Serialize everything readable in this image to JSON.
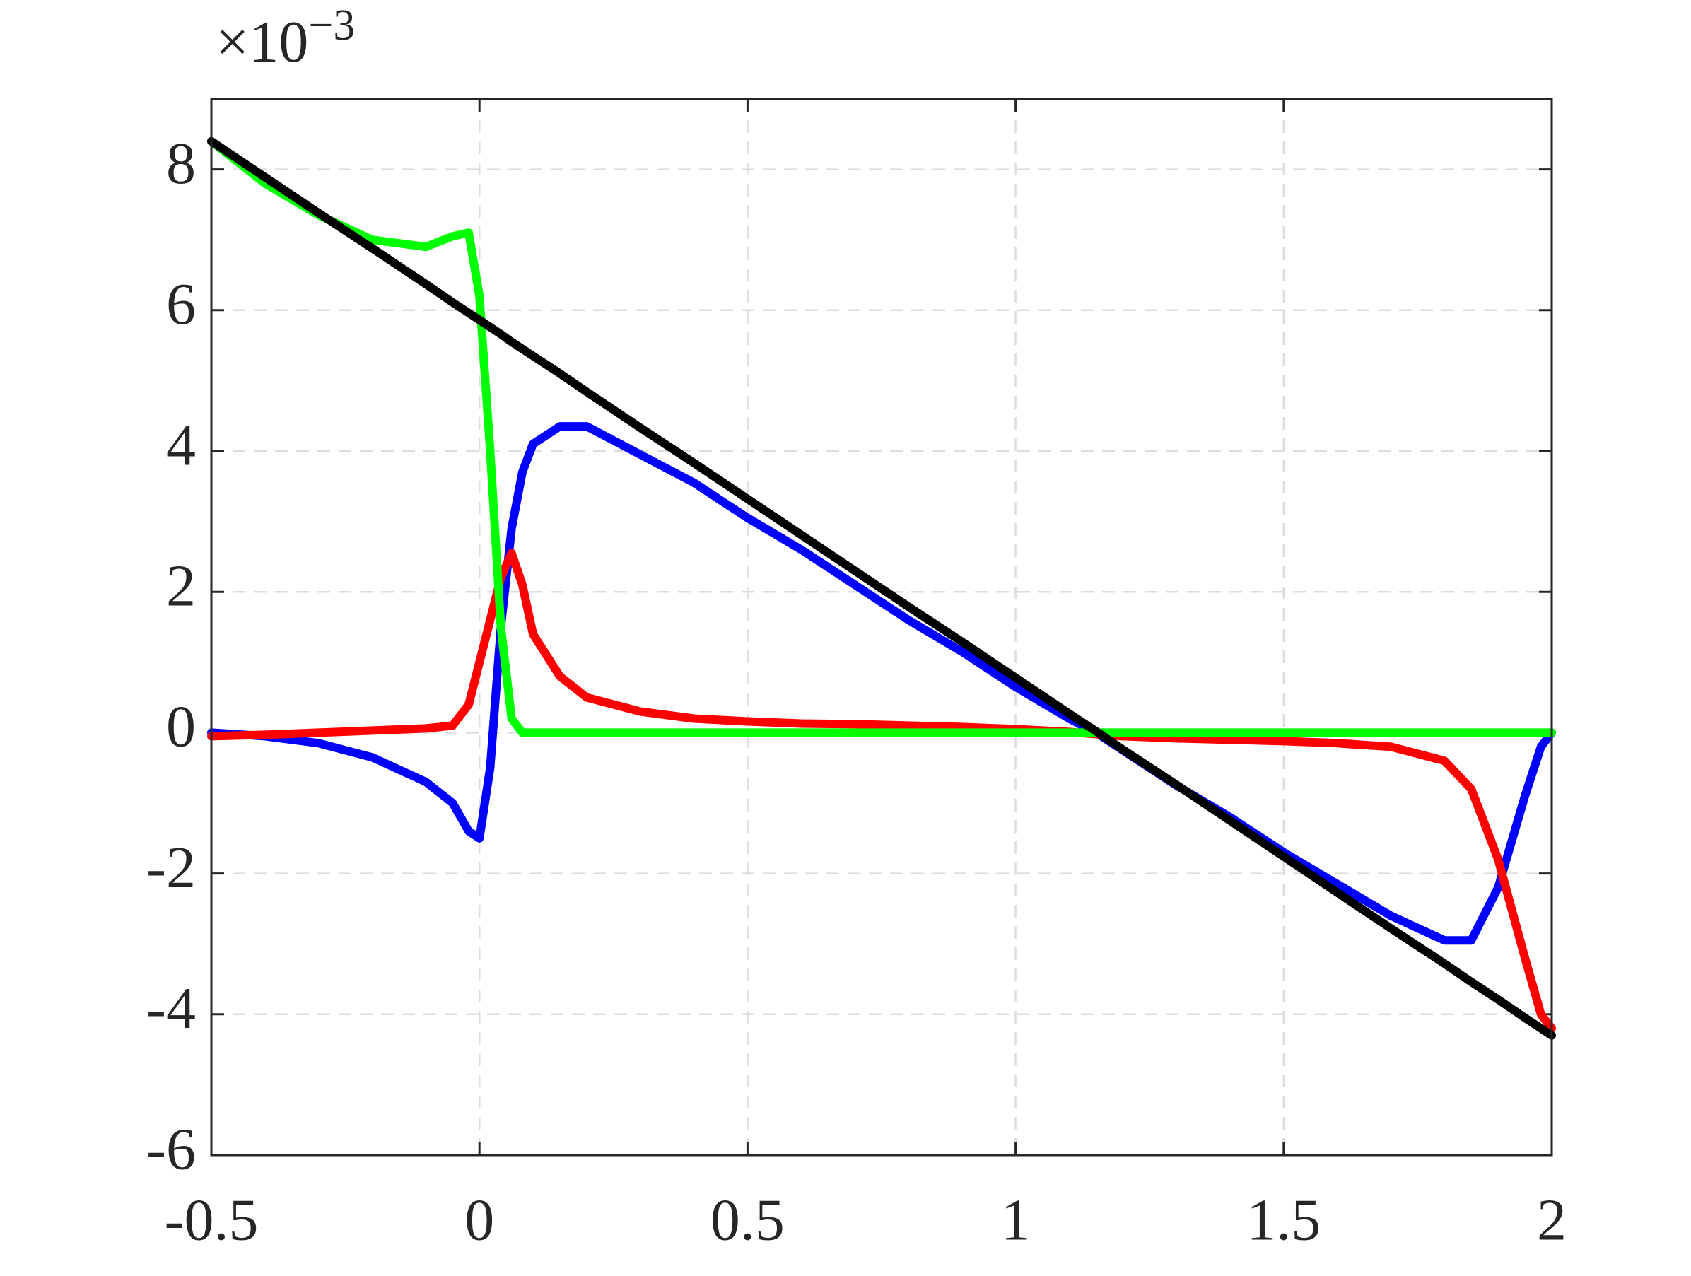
{
  "chart_data": {
    "type": "line",
    "multiplier": "×10",
    "multiplier_exponent": "−3",
    "x": [
      -0.5,
      -0.4,
      -0.3,
      -0.2,
      -0.1,
      -0.05,
      -0.02,
      0,
      0.02,
      0.04,
      0.06,
      0.08,
      0.1,
      0.15,
      0.2,
      0.3,
      0.4,
      0.5,
      0.6,
      0.7,
      0.8,
      0.9,
      1,
      1.1,
      1.15,
      1.2,
      1.3,
      1.4,
      1.5,
      1.6,
      1.7,
      1.8,
      1.85,
      1.9,
      1.95,
      1.98,
      2
    ],
    "series": [
      {
        "color": "#0000ff",
        "values": [
          0,
          -0.05,
          -0.15,
          -0.35,
          -0.7,
          -1.0,
          -1.4,
          -1.5,
          -0.5,
          1.5,
          2.9,
          3.7,
          4.1,
          4.35,
          4.35,
          3.95,
          3.55,
          3.05,
          2.6,
          2.1,
          1.6,
          1.15,
          0.65,
          0.2,
          0,
          -0.25,
          -0.75,
          -1.2,
          -1.7,
          -2.15,
          -2.6,
          -2.95,
          -2.95,
          -2.2,
          -0.9,
          -0.2,
          0
        ]
      },
      {
        "color": "#ff0000",
        "values": [
          -0.05,
          -0.03,
          0,
          0.03,
          0.06,
          0.1,
          0.4,
          1.0,
          1.6,
          2.2,
          2.55,
          2.1,
          1.4,
          0.8,
          0.5,
          0.3,
          0.2,
          0.16,
          0.13,
          0.12,
          0.1,
          0.08,
          0.05,
          0.01,
          -0.02,
          -0.05,
          -0.08,
          -0.1,
          -0.12,
          -0.15,
          -0.2,
          -0.4,
          -0.8,
          -1.8,
          -3.2,
          -4.0,
          -4.2
        ]
      },
      {
        "color": "#00ff00",
        "values": [
          8.4,
          7.8,
          7.35,
          7.0,
          6.9,
          7.05,
          7.1,
          6.2,
          4.0,
          1.5,
          0.2,
          0,
          0,
          0,
          0,
          0,
          0,
          0,
          0,
          0,
          0,
          0,
          0,
          0,
          0,
          0,
          0,
          0,
          0,
          0,
          0,
          0,
          0,
          0,
          0,
          0,
          0
        ]
      },
      {
        "color": "#000000",
        "values": [
          8.4,
          7.89,
          7.38,
          6.88,
          6.37,
          6.11,
          5.96,
          5.86,
          5.76,
          5.66,
          5.55,
          5.45,
          5.35,
          5.1,
          4.84,
          4.33,
          3.83,
          3.32,
          2.81,
          2.3,
          1.79,
          1.29,
          0.78,
          0.27,
          0.02,
          -0.24,
          -0.74,
          -1.25,
          -1.76,
          -2.27,
          -2.78,
          -3.28,
          -3.54,
          -3.79,
          -4.05,
          -4.2,
          -4.3
        ]
      }
    ],
    "xlim": [
      -0.5,
      2
    ],
    "xticks": [
      -0.5,
      0,
      0.5,
      1,
      1.5,
      2
    ],
    "ylim": [
      -6,
      9
    ],
    "yticks": [
      -6,
      -4,
      -2,
      0,
      2,
      4,
      6,
      8
    ],
    "grid": true
  }
}
